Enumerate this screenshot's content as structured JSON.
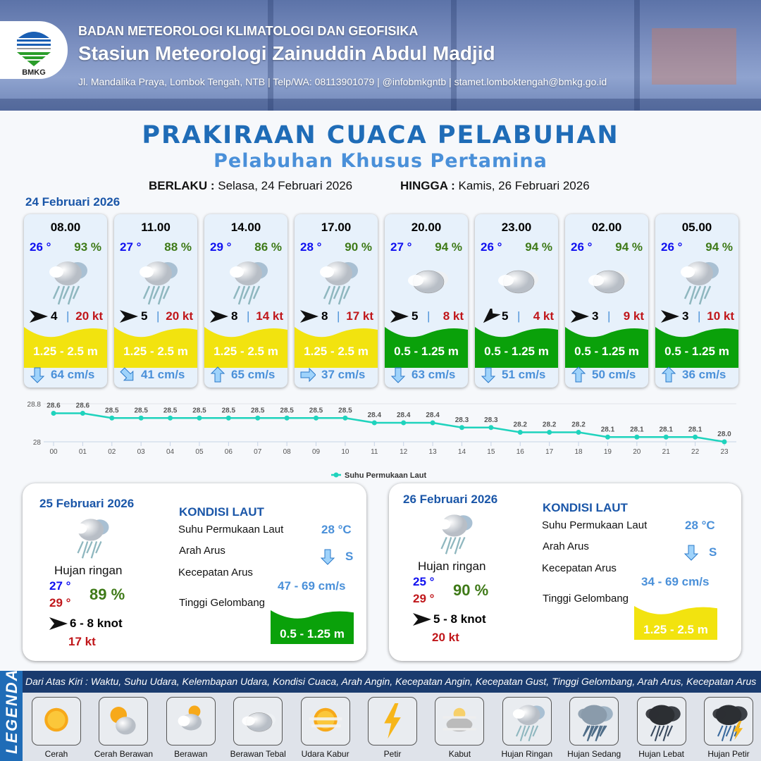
{
  "header": {
    "org": "BADAN METEOROLOGI KLIMATOLOGI DAN GEOFISIKA",
    "station": "Stasiun Meteorologi Zainuddin Abdul Madjid",
    "contact": "Jl. Mandalika Praya, Lombok Tengah, NTB | Telp/WA: 08113901079 | @infobmkgntb | stamet.lomboktengah@bmkg.go.id",
    "logo_text": "BMKG"
  },
  "title": "PRAKIRAAN CUACA PELABUHAN",
  "subtitle": "Pelabuhan Khusus Pertamina",
  "validity": {
    "from_label": "BERLAKU :",
    "from": "Selasa, 24 Februari 2026",
    "to_label": "HINGGA :",
    "to": "Kamis, 26 Februari 2026"
  },
  "day1": {
    "date": "24 Februari 2026"
  },
  "colors": {
    "wave_moderate": "#f2e30f",
    "wave_slight": "#0aa10a",
    "temp": "#1010f0",
    "humidity": "#3f7a18",
    "gust": "#c0161a",
    "current": "#4a90d9",
    "sst_line": "#1fd3bd"
  },
  "forecasts": [
    {
      "time": "08.00",
      "temp": "26 °",
      "rh": "93 %",
      "weather": "hujan-ringan",
      "wind_dir_deg": 90,
      "wind": "4",
      "gust": "20 kt",
      "wave": "1.25 - 2.5 m",
      "wave_cat": "moderate",
      "current_dir_deg": 180,
      "current": "64 cm/s"
    },
    {
      "time": "11.00",
      "temp": "27 °",
      "rh": "88 %",
      "weather": "hujan-ringan",
      "wind_dir_deg": 90,
      "wind": "5",
      "gust": "20 kt",
      "wave": "1.25 - 2.5 m",
      "wave_cat": "moderate",
      "current_dir_deg": 135,
      "current": "41 cm/s"
    },
    {
      "time": "14.00",
      "temp": "29 °",
      "rh": "86 %",
      "weather": "hujan-ringan",
      "wind_dir_deg": 90,
      "wind": "8",
      "gust": "14 kt",
      "wave": "1.25 - 2.5 m",
      "wave_cat": "moderate",
      "current_dir_deg": 0,
      "current": "65 cm/s"
    },
    {
      "time": "17.00",
      "temp": "28 °",
      "rh": "90 %",
      "weather": "hujan-ringan",
      "wind_dir_deg": 90,
      "wind": "8",
      "gust": "17 kt",
      "wave": "1.25 - 2.5 m",
      "wave_cat": "moderate",
      "current_dir_deg": 90,
      "current": "37 cm/s"
    },
    {
      "time": "20.00",
      "temp": "27 °",
      "rh": "94 %",
      "weather": "berawan-tebal",
      "wind_dir_deg": 90,
      "wind": "5",
      "gust": "8 kt",
      "wave": "0.5 - 1.25 m",
      "wave_cat": "slight",
      "current_dir_deg": 180,
      "current": "63 cm/s"
    },
    {
      "time": "23.00",
      "temp": "26 °",
      "rh": "94 %",
      "weather": "berawan-tebal",
      "wind_dir_deg": 225,
      "wind": "5",
      "gust": "4 kt",
      "wave": "0.5 - 1.25 m",
      "wave_cat": "slight",
      "current_dir_deg": 180,
      "current": "51 cm/s"
    },
    {
      "time": "02.00",
      "temp": "26 °",
      "rh": "94 %",
      "weather": "berawan-tebal",
      "wind_dir_deg": 90,
      "wind": "3",
      "gust": "9 kt",
      "wave": "0.5 - 1.25 m",
      "wave_cat": "slight",
      "current_dir_deg": 0,
      "current": "50 cm/s"
    },
    {
      "time": "05.00",
      "temp": "26 °",
      "rh": "94 %",
      "weather": "hujan-ringan",
      "wind_dir_deg": 90,
      "wind": "3",
      "gust": "10 kt",
      "wave": "0.5 - 1.25 m",
      "wave_cat": "slight",
      "current_dir_deg": 0,
      "current": "36 cm/s"
    }
  ],
  "chart_data": {
    "type": "line",
    "x": [
      "00",
      "01",
      "02",
      "03",
      "04",
      "05",
      "06",
      "07",
      "08",
      "09",
      "10",
      "11",
      "12",
      "13",
      "14",
      "15",
      "16",
      "17",
      "18",
      "19",
      "20",
      "21",
      "22",
      "23"
    ],
    "series": [
      {
        "name": "Suhu Permukaan Laut",
        "values": [
          28.6,
          28.6,
          28.5,
          28.5,
          28.5,
          28.5,
          28.5,
          28.5,
          28.5,
          28.5,
          28.5,
          28.4,
          28.4,
          28.4,
          28.3,
          28.3,
          28.2,
          28.2,
          28.2,
          28.1,
          28.1,
          28.1,
          28.1,
          28.0
        ]
      }
    ],
    "y_ticks": [
      "28.8",
      "28"
    ],
    "ylim": [
      28,
      28.8
    ],
    "legend": "bottom",
    "grid": true
  },
  "days": [
    {
      "date": "25 Februari 2026",
      "weather": "hujan-ringan",
      "condition": "Hujan ringan",
      "tmin": "27 °",
      "tmax": "29 °",
      "rh": "89 %",
      "wind": "6  - 8 knot",
      "gust": "17 kt",
      "sea": {
        "heading": "KONDISI LAUT",
        "sst_label": "Suhu Permukaan Laut",
        "sst": "28 °C",
        "dir_label": "Arah Arus",
        "dir": "S",
        "dir_deg": 180,
        "speed_label": "Kecepatan Arus",
        "speed": "47  - 69 cm/s",
        "wave_label": "Tinggi Gelombang",
        "wave": "0.5 - 1.25 m",
        "wave_cat": "slight"
      }
    },
    {
      "date": "26 Februari 2026",
      "weather": "hujan-ringan",
      "condition": "Hujan ringan",
      "tmin": "25 °",
      "tmax": "29 °",
      "rh": "90 %",
      "wind": "5  - 8 knot",
      "gust": "20 kt",
      "sea": {
        "heading": "KONDISI LAUT",
        "sst_label": "Suhu Permukaan Laut",
        "sst": "28 °C",
        "dir_label": "Arah Arus",
        "dir": "S",
        "dir_deg": 180,
        "speed_label": "Kecepatan Arus",
        "speed": "34  - 69 cm/s",
        "wave_label": "Tinggi Gelombang",
        "wave": "1.25 - 2.5 m",
        "wave_cat": "moderate"
      }
    }
  ],
  "legend": {
    "title": "LEGENDA",
    "description": "Dari Atas Kiri : Waktu, Suhu Udara, Kelembapan Udara, Kondisi Cuaca, Arah Angin, Kecepatan Angin, Kecepatan Gust, Tinggi Gelombang, Arah Arus, Kecepatan Arus",
    "items": [
      {
        "label": "Cerah",
        "icon": "cerah"
      },
      {
        "label": "Cerah Berawan",
        "icon": "cerah-berawan"
      },
      {
        "label": "Berawan",
        "icon": "berawan"
      },
      {
        "label": "Berawan Tebal",
        "icon": "berawan-tebal"
      },
      {
        "label": "Udara Kabur",
        "icon": "udara-kabur"
      },
      {
        "label": "Petir",
        "icon": "petir"
      },
      {
        "label": "Kabut",
        "icon": "kabut"
      },
      {
        "label": "Hujan Ringan",
        "icon": "hujan-ringan"
      },
      {
        "label": "Hujan Sedang",
        "icon": "hujan-sedang"
      },
      {
        "label": "Hujan Lebat",
        "icon": "hujan-lebat"
      },
      {
        "label": "Hujan Petir",
        "icon": "hujan-petir"
      }
    ]
  }
}
